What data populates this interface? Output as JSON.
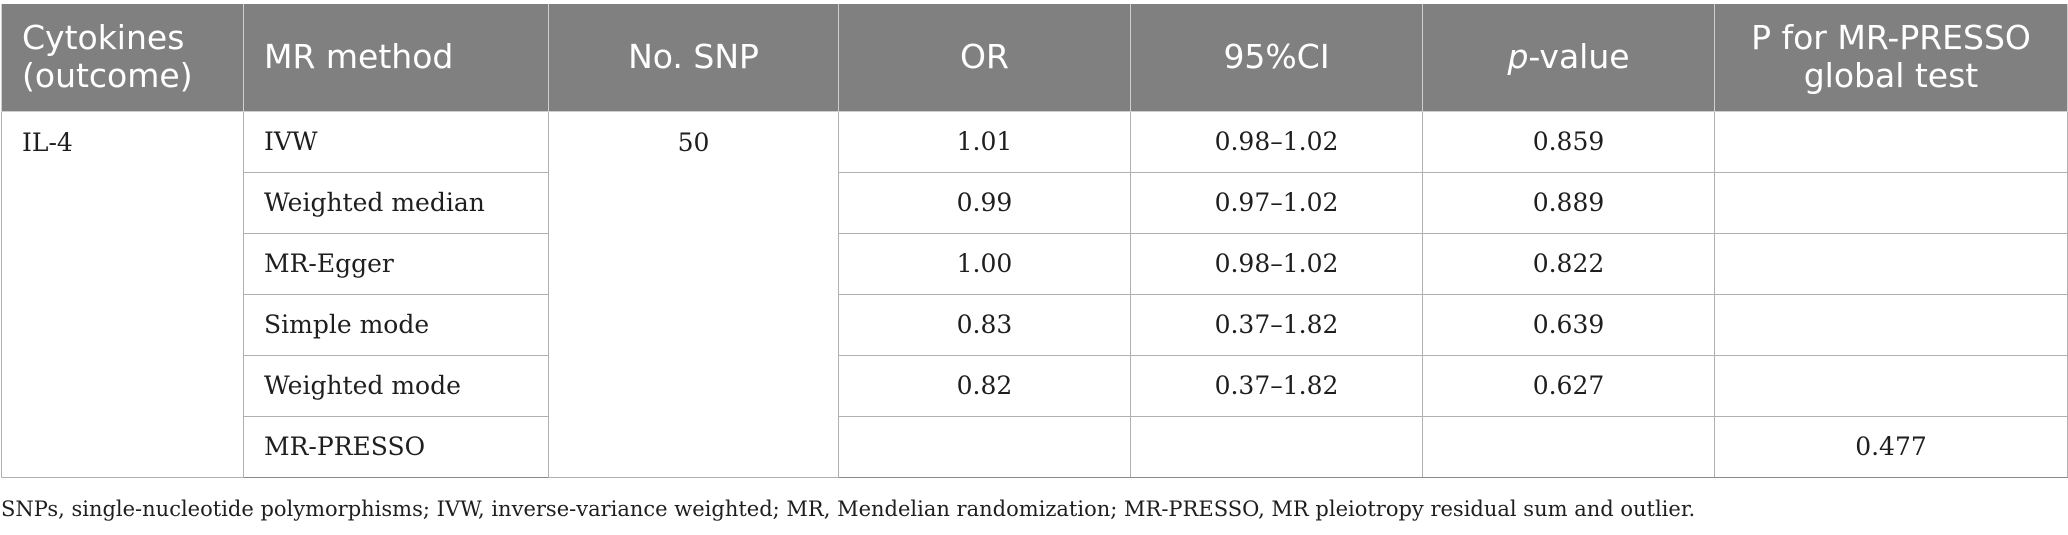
{
  "header": {
    "col_cytokines_line1": "Cytokines",
    "col_cytokines_line2": "(outcome)",
    "col_method": "MR method",
    "col_nsnp": "No. SNP",
    "col_or": "OR",
    "col_ci": "95%CI",
    "col_p_italic": "p",
    "col_p_rest": "-value",
    "col_presso_line1": "P for MR-PRESSO",
    "col_presso_line2": "global test"
  },
  "group": {
    "cytokine": "IL-4",
    "nsnp": "50"
  },
  "rows": [
    {
      "method": "IVW",
      "or": "1.01",
      "ci": "0.98–1.02",
      "p": "0.859",
      "presso_p": ""
    },
    {
      "method": "Weighted median",
      "or": "0.99",
      "ci": "0.97–1.02",
      "p": "0.889",
      "presso_p": ""
    },
    {
      "method": "MR-Egger",
      "or": "1.00",
      "ci": "0.98–1.02",
      "p": "0.822",
      "presso_p": ""
    },
    {
      "method": "Simple mode",
      "or": "0.83",
      "ci": "0.37–1.82",
      "p": "0.639",
      "presso_p": ""
    },
    {
      "method": "Weighted mode",
      "or": "0.82",
      "ci": "0.37–1.82",
      "p": "0.627",
      "presso_p": ""
    },
    {
      "method": "MR-PRESSO",
      "or": "",
      "ci": "",
      "p": "",
      "presso_p": "0.477"
    }
  ],
  "footnote": "SNPs, single-nucleotide polymorphisms; IVW, inverse-variance weighted; MR, Mendelian randomization; MR-PRESSO, MR pleiotropy residual sum and outlier.",
  "colors": {
    "header_bg": "#808080",
    "header_text": "#ffffff",
    "grid": "#b0b0b0",
    "body_text": "#1e1e1e"
  }
}
